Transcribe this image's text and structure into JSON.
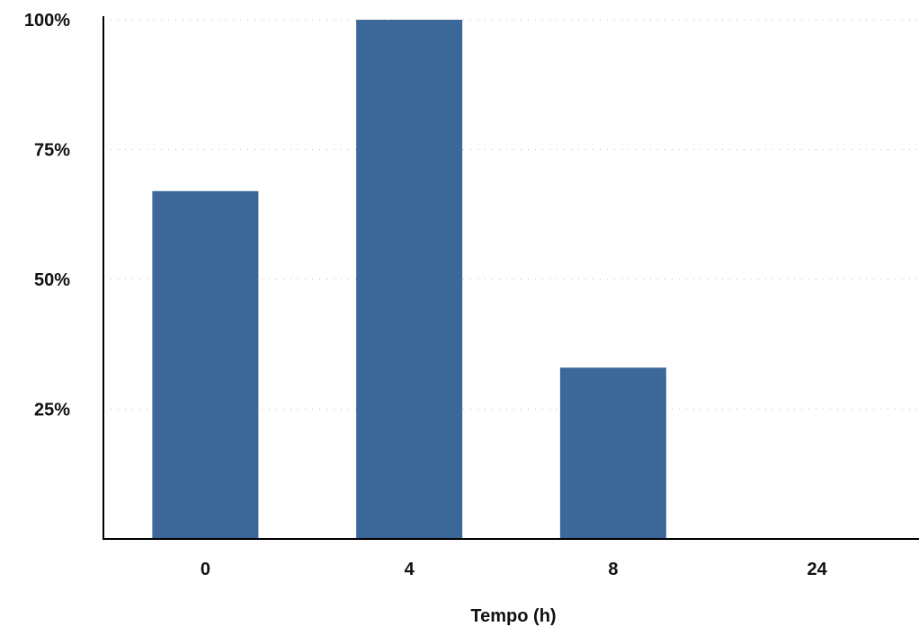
{
  "chart_data": {
    "type": "bar",
    "categories": [
      "0",
      "4",
      "8",
      "24"
    ],
    "values": [
      67,
      100,
      33,
      0
    ],
    "ylim": [
      0,
      100
    ],
    "yticks": [
      25,
      50,
      75,
      100
    ],
    "ytick_labels": [
      "25%",
      "50%",
      "75%",
      "100%"
    ],
    "xlabel": "Tempo (h)",
    "ylabel": "",
    "title": "",
    "grid": true,
    "bar_color": "#3b6799"
  }
}
